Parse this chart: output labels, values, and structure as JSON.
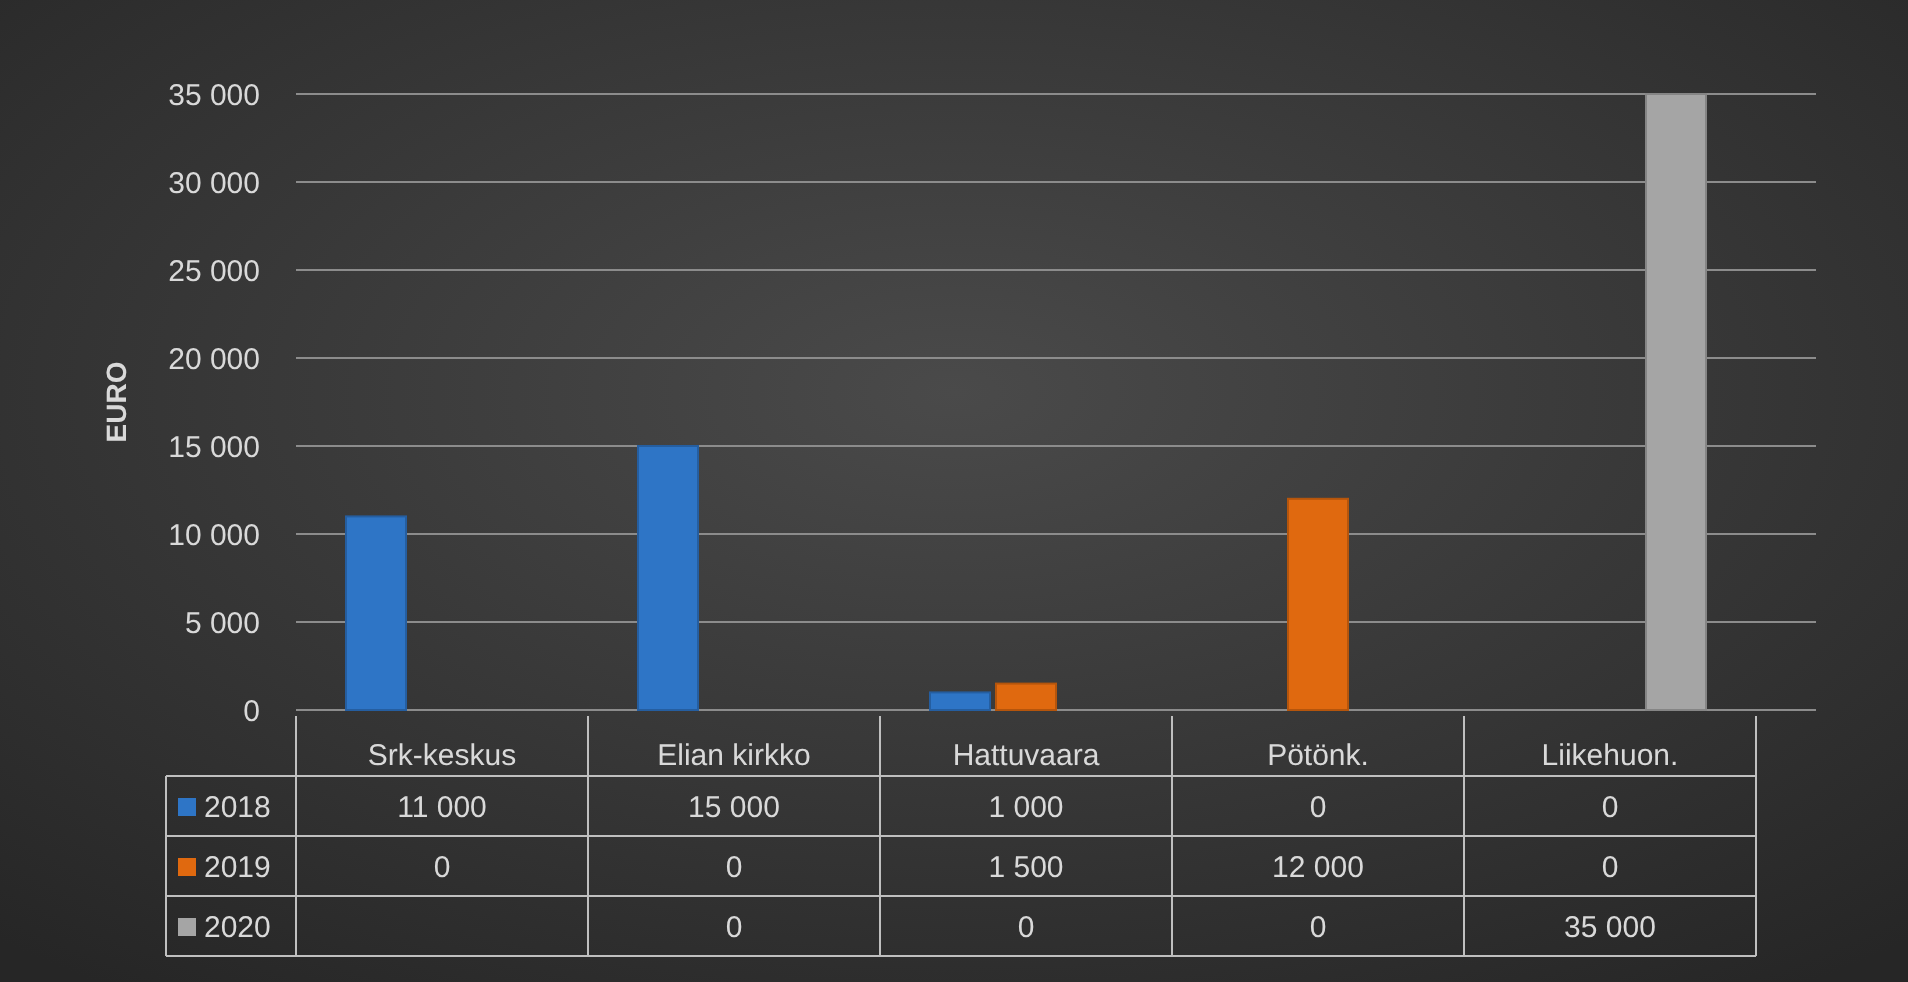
{
  "chart_data": {
    "type": "bar",
    "ylabel": "EURO",
    "categories": [
      "Srk-keskus",
      "Elian kirkko",
      "Hattuvaara",
      "Pötönk.",
      "Liikehuon."
    ],
    "series": [
      {
        "name": "2018",
        "color": "#2e75c6",
        "values": [
          11000,
          15000,
          1000,
          0,
          0
        ],
        "value_labels": [
          "11 000",
          "15 000",
          "1 000",
          "0",
          "0"
        ]
      },
      {
        "name": "2019",
        "color": "#e0690f",
        "values": [
          0,
          0,
          1500,
          12000,
          0
        ],
        "value_labels": [
          "0",
          "0",
          "1 500",
          "12 000",
          "0"
        ]
      },
      {
        "name": "2020",
        "color": "#a5a5a5",
        "values": [
          null,
          0,
          0,
          0,
          35000
        ],
        "value_labels": [
          null,
          "0",
          "0",
          "0",
          "35 000"
        ]
      }
    ],
    "ylim": [
      0,
      35000
    ],
    "yticks": [
      0,
      {
        "value": 5000,
        "label": "5 000"
      },
      {
        "value": 10000,
        "label": "10 000"
      },
      {
        "value": 15000,
        "label": "15 000"
      },
      {
        "value": 20000,
        "label": "20 000"
      },
      {
        "value": 25000,
        "label": "25 000"
      },
      {
        "value": 30000,
        "label": "30 000"
      },
      {
        "value": 35000,
        "label": "35 000"
      }
    ],
    "grid": "y",
    "legend": "bottom"
  }
}
